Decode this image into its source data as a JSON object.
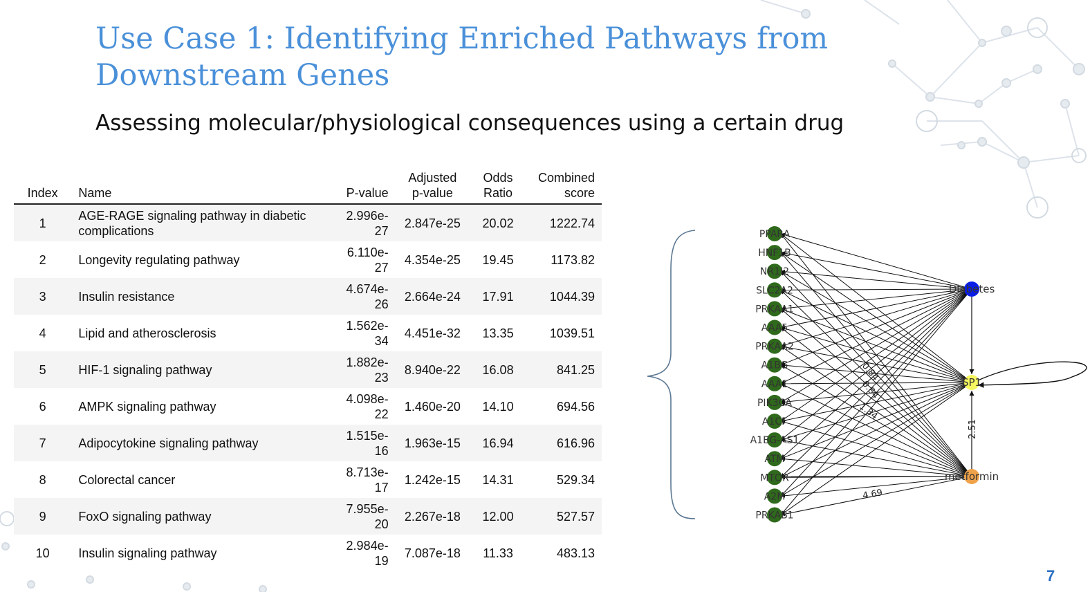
{
  "slide": {
    "title": "Use Case 1: Identifying Enriched Pathways from Downstream Genes",
    "subtitle": "Assessing molecular/physiological consequences using a certain drug",
    "page_number": "7"
  },
  "table": {
    "headers": {
      "index": "Index",
      "name": "Name",
      "p_value": "P-value",
      "adjusted": "Adjusted p-value",
      "odds": "Odds Ratio",
      "combined": "Combined score"
    },
    "rows": [
      {
        "index": "1",
        "name": "AGE-RAGE signaling pathway in diabetic complications",
        "p_value": "2.996e-27",
        "adjusted": "2.847e-25",
        "odds": "20.02",
        "combined": "1222.74"
      },
      {
        "index": "2",
        "name": "Longevity regulating pathway",
        "p_value": "6.110e-27",
        "adjusted": "4.354e-25",
        "odds": "19.45",
        "combined": "1173.82"
      },
      {
        "index": "3",
        "name": "Insulin resistance",
        "p_value": "4.674e-26",
        "adjusted": "2.664e-24",
        "odds": "17.91",
        "combined": "1044.39"
      },
      {
        "index": "4",
        "name": "Lipid and atherosclerosis",
        "p_value": "1.562e-34",
        "adjusted": "4.451e-32",
        "odds": "13.35",
        "combined": "1039.51"
      },
      {
        "index": "5",
        "name": "HIF-1 signaling pathway",
        "p_value": "1.882e-23",
        "adjusted": "8.940e-22",
        "odds": "16.08",
        "combined": "841.25"
      },
      {
        "index": "6",
        "name": "AMPK signaling pathway",
        "p_value": "4.098e-22",
        "adjusted": "1.460e-20",
        "odds": "14.10",
        "combined": "694.56"
      },
      {
        "index": "7",
        "name": "Adipocytokine signaling pathway",
        "p_value": "1.515e-16",
        "adjusted": "1.963e-15",
        "odds": "16.94",
        "combined": "616.96"
      },
      {
        "index": "8",
        "name": "Colorectal cancer",
        "p_value": "8.713e-17",
        "adjusted": "1.242e-15",
        "odds": "14.31",
        "combined": "529.34"
      },
      {
        "index": "9",
        "name": "FoxO signaling pathway",
        "p_value": "7.955e-20",
        "adjusted": "2.267e-18",
        "odds": "12.00",
        "combined": "527.57"
      },
      {
        "index": "10",
        "name": "Insulin signaling pathway",
        "p_value": "2.984e-19",
        "adjusted": "7.087e-18",
        "odds": "11.33",
        "combined": "483.13"
      }
    ]
  },
  "network": {
    "genes": [
      "PPARA",
      "HNF1B",
      "NR1I2",
      "SLC2A2",
      "PRKAA1",
      "AAA5",
      "PRKAA2",
      "A1BG",
      "AAA1",
      "PIK3CA",
      "A1CF",
      "A1BG-AS1",
      "ATM",
      "MTOR",
      "A2M",
      "PRKAB1"
    ],
    "hubs": {
      "diabetes": {
        "label": "Diabetes",
        "color": "#0a1ee6"
      },
      "sp1": {
        "label": "SP1",
        "color": "#f7f760"
      },
      "metformin": {
        "label": "metformin",
        "color": "#f0a24a"
      }
    },
    "gene_color": "#2f6a1c",
    "edge_labels": {
      "sp1_metformin": "2.51",
      "metformin_prkab1": "4.69",
      "mid_a": "0.84",
      "mid_b": "0.84",
      "mid_c": "1.34"
    }
  },
  "colors": {
    "title": "#4a90d9",
    "page_number": "#2b6fc4"
  }
}
